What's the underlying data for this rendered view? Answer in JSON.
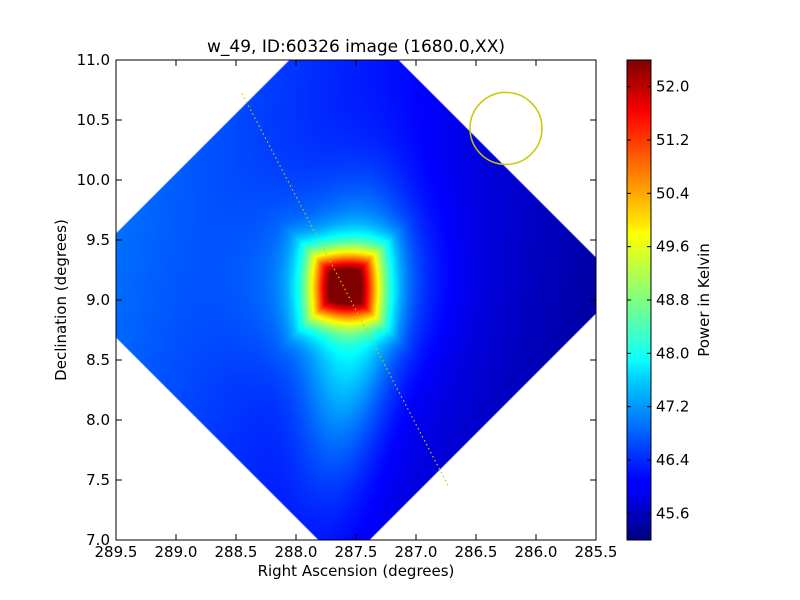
{
  "chart_data": {
    "type": "heatmap",
    "title": "w_49, ID:60326 image (1680.0,XX)",
    "xlabel": "Right Ascension (degrees)",
    "ylabel": "Declination (degrees)",
    "xlim": [
      289.5,
      285.5
    ],
    "ylim": [
      7.0,
      11.0
    ],
    "x_ticks": [
      "289.5",
      "289.0",
      "288.5",
      "288.0",
      "287.5",
      "287.0",
      "286.5",
      "286.0",
      "285.5"
    ],
    "x_tick_values": [
      289.5,
      289.0,
      288.5,
      288.0,
      287.5,
      287.0,
      286.5,
      286.0,
      285.5
    ],
    "y_ticks": [
      "7.0",
      "7.5",
      "8.0",
      "8.5",
      "9.0",
      "9.5",
      "10.0",
      "10.5",
      "11.0"
    ],
    "y_tick_values": [
      7.0,
      7.5,
      8.0,
      8.5,
      9.0,
      9.5,
      10.0,
      10.5,
      11.0
    ],
    "map_center": {
      "ra": 287.6,
      "dec": 9.12
    },
    "map_half_width_deg": 1.65,
    "peak": {
      "ra": 287.6,
      "dec": 9.12,
      "value": 52.2
    },
    "background_value": 45.8,
    "beam_circle": {
      "ra": 286.25,
      "dec": 10.43,
      "radius_deg": 0.3,
      "color": "#c8c800"
    },
    "galactic_plane_line": {
      "points": [
        [
          288.45,
          10.72
        ],
        [
          286.73,
          7.45
        ]
      ],
      "color": "#c8c800",
      "style": "dotted"
    },
    "colorbar": {
      "label": "Power in Kelvin",
      "min": 45.2,
      "max": 52.4,
      "ticks": [
        "45.6",
        "46.4",
        "47.2",
        "48.0",
        "48.8",
        "49.6",
        "50.4",
        "51.2",
        "52.0"
      ],
      "tick_values": [
        45.6,
        46.4,
        47.2,
        48.0,
        48.8,
        49.6,
        50.4,
        51.2,
        52.0
      ],
      "colormap": "jet"
    }
  }
}
